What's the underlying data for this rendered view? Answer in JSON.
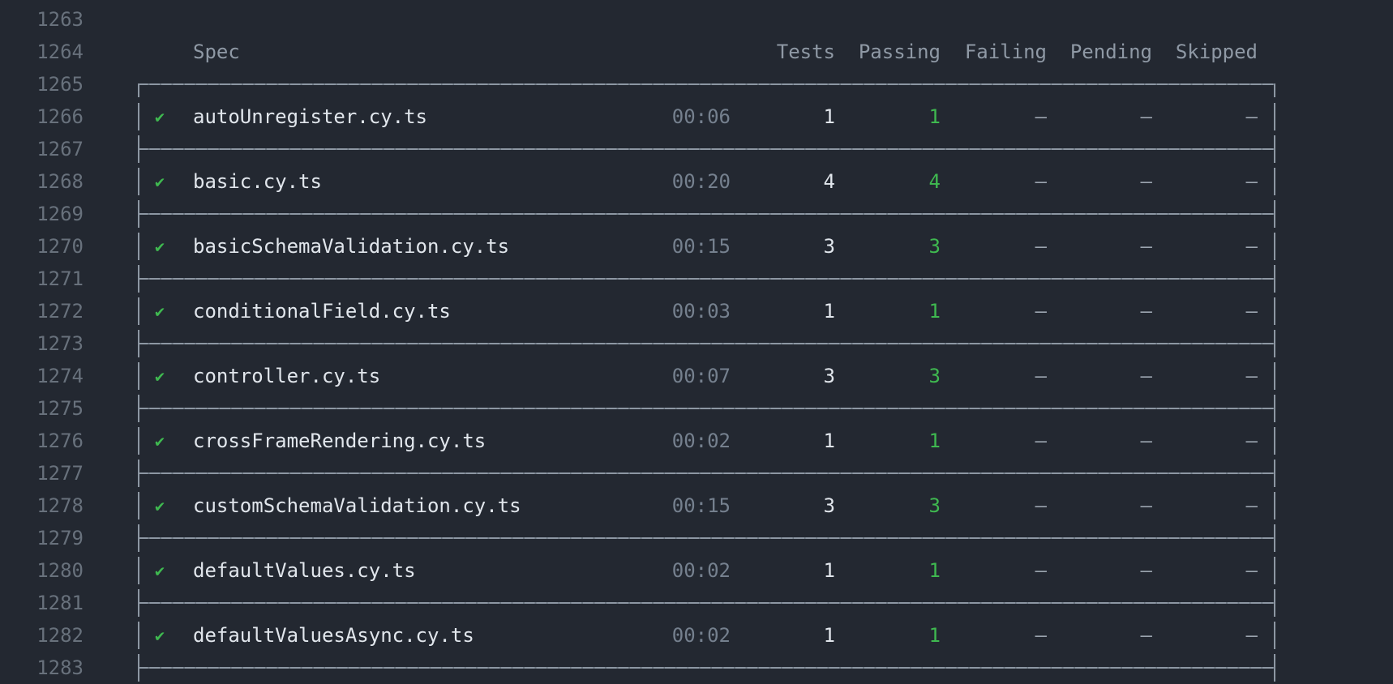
{
  "terminal": {
    "description": "Cypress run-finished spec summary table in a dark terminal buffer",
    "colors": {
      "background": "#232831",
      "line_number": "#68717c",
      "header_text": "#8f99a5",
      "border": "#8d97a3",
      "primary_text": "#e1e6ec",
      "duration_text": "#75808e",
      "dash_text": "#9aa3ae",
      "success_green": "#3fb950"
    }
  },
  "icons": {
    "check": "✔"
  },
  "line_numbers": [
    "1263",
    "1264",
    "1265",
    "1266",
    "1267",
    "1268",
    "1269",
    "1270",
    "1271",
    "1272",
    "1273",
    "1274",
    "1275",
    "1276",
    "1277",
    "1278",
    "1279",
    "1280",
    "1281",
    "1282",
    "1283"
  ],
  "table": {
    "headers": {
      "spec": "Spec",
      "tests": "Tests",
      "passing": "Passing",
      "failing": "Failing",
      "pending": "Pending",
      "skipped": "Skipped"
    },
    "rows": [
      {
        "spec": "autoUnregister.cy.ts",
        "duration": "00:06",
        "tests": "1",
        "passing": "1",
        "failing": "–",
        "pending": "–",
        "skipped": "–"
      },
      {
        "spec": "basic.cy.ts",
        "duration": "00:20",
        "tests": "4",
        "passing": "4",
        "failing": "–",
        "pending": "–",
        "skipped": "–"
      },
      {
        "spec": "basicSchemaValidation.cy.ts",
        "duration": "00:15",
        "tests": "3",
        "passing": "3",
        "failing": "–",
        "pending": "–",
        "skipped": "–"
      },
      {
        "spec": "conditionalField.cy.ts",
        "duration": "00:03",
        "tests": "1",
        "passing": "1",
        "failing": "–",
        "pending": "–",
        "skipped": "–"
      },
      {
        "spec": "controller.cy.ts",
        "duration": "00:07",
        "tests": "3",
        "passing": "3",
        "failing": "–",
        "pending": "–",
        "skipped": "–"
      },
      {
        "spec": "crossFrameRendering.cy.ts",
        "duration": "00:02",
        "tests": "1",
        "passing": "1",
        "failing": "–",
        "pending": "–",
        "skipped": "–"
      },
      {
        "spec": "customSchemaValidation.cy.ts",
        "duration": "00:15",
        "tests": "3",
        "passing": "3",
        "failing": "–",
        "pending": "–",
        "skipped": "–"
      },
      {
        "spec": "defaultValues.cy.ts",
        "duration": "00:02",
        "tests": "1",
        "passing": "1",
        "failing": "–",
        "pending": "–",
        "skipped": "–"
      },
      {
        "spec": "defaultValuesAsync.cy.ts",
        "duration": "00:02",
        "tests": "1",
        "passing": "1",
        "failing": "–",
        "pending": "–",
        "skipped": "–"
      }
    ]
  }
}
